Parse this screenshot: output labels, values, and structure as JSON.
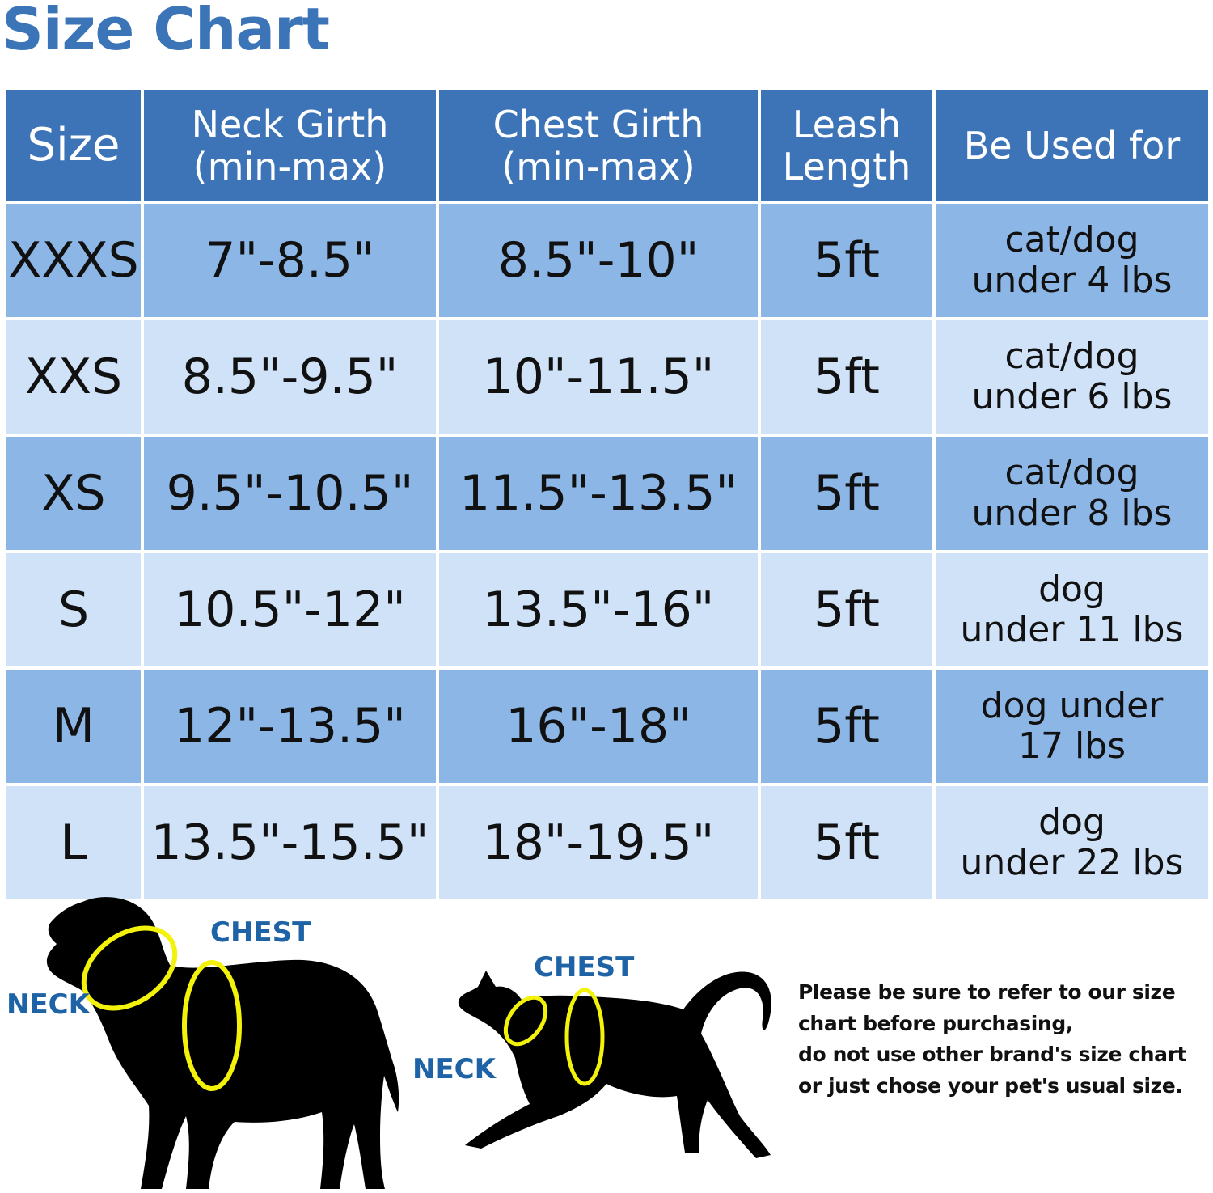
{
  "title": "Size Chart",
  "table": {
    "headers": {
      "size": "Size",
      "neck": [
        "Neck Girth",
        "(min-max)"
      ],
      "chest": [
        "Chest Girth",
        "(min-max)"
      ],
      "leash": [
        "Leash",
        "Length"
      ],
      "use": "Be Used for"
    },
    "rows": [
      {
        "size": "XXXS",
        "neck": "7\"-8.5\"",
        "chest": "8.5\"-10\"",
        "leash": "5ft",
        "use": [
          "cat/dog",
          "under 4 lbs"
        ]
      },
      {
        "size": "XXS",
        "neck": "8.5\"-9.5\"",
        "chest": "10\"-11.5\"",
        "leash": "5ft",
        "use": [
          "cat/dog",
          "under 6 lbs"
        ]
      },
      {
        "size": "XS",
        "neck": "9.5\"-10.5\"",
        "chest": "11.5\"-13.5\"",
        "leash": "5ft",
        "use": [
          "cat/dog",
          "under 8 lbs"
        ]
      },
      {
        "size": "S",
        "neck": "10.5\"-12\"",
        "chest": "13.5\"-16\"",
        "leash": "5ft",
        "use": [
          "dog",
          "under 11 lbs"
        ]
      },
      {
        "size": "M",
        "neck": "12\"-13.5\"",
        "chest": "16\"-18\"",
        "leash": "5ft",
        "use": [
          "dog under",
          "17 lbs"
        ]
      },
      {
        "size": "L",
        "neck": "13.5\"-15.5\"",
        "chest": "18\"-19.5\"",
        "leash": "5ft",
        "use": [
          "dog",
          "under 22 lbs"
        ]
      }
    ]
  },
  "diagram": {
    "dog": {
      "neck_label": "NECK",
      "chest_label": "CHEST"
    },
    "cat": {
      "neck_label": "NECK",
      "chest_label": "CHEST"
    }
  },
  "note_lines": [
    "Please be sure to refer to our size",
    "chart before purchasing,",
    "do not use other brand's size chart",
    "or just chose your pet's usual size."
  ],
  "colors": {
    "title": "#3b74b7",
    "header_bg": "#3d74b8",
    "row_dark": "#8cb6e6",
    "row_light": "#cfe2f7",
    "label": "#1e63a6",
    "ring": "#f2f20a"
  }
}
